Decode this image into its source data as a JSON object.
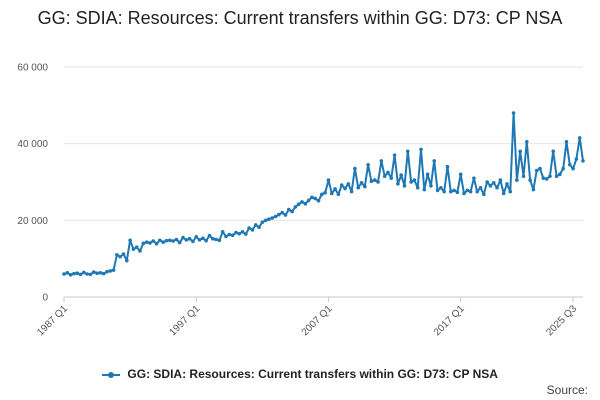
{
  "chart_data": {
    "type": "line",
    "title": "GG: SDIA: Resources: Current transfers within GG: D73: CP NSA",
    "xlabel": "",
    "ylabel": "",
    "ylim": [
      0,
      60000
    ],
    "yticks": [
      0,
      20000,
      40000,
      60000
    ],
    "ytick_labels": [
      "0",
      "20 000",
      "40 000",
      "60 000"
    ],
    "xlim": [
      "1987 Q1",
      "2025 Q3"
    ],
    "xticks": [
      "1987 Q1",
      "1997 Q1",
      "2007 Q1",
      "2017 Q1",
      "2025 Q3"
    ],
    "grid": true,
    "legend": "bottom",
    "color": "#1f78b4",
    "series": [
      {
        "name": "GG: SDIA: Resources: Current transfers within GG: D73: CP NSA",
        "values": [
          6000,
          6300,
          5800,
          6100,
          6200,
          5900,
          6400,
          6000,
          5900,
          6500,
          6200,
          6300,
          6100,
          6600,
          6800,
          7000,
          11000,
          10500,
          11200,
          9500,
          14800,
          12500,
          13000,
          12000,
          14000,
          14300,
          14100,
          14600,
          13900,
          14800,
          14300,
          14700,
          14800,
          14600,
          15000,
          14200,
          15500,
          14900,
          15200,
          14500,
          15700,
          14900,
          15300,
          14700,
          16000,
          15200,
          15000,
          14800,
          17000,
          15800,
          16300,
          16100,
          16800,
          16500,
          17000,
          16400,
          18000,
          17500,
          18800,
          18200,
          19500,
          20000,
          20300,
          20600,
          21000,
          21500,
          22000,
          21400,
          22800,
          22300,
          23500,
          24200,
          24800,
          24300,
          25200,
          26000,
          25700,
          25100,
          26800,
          27200,
          30500,
          27000,
          28200,
          26800,
          29200,
          28300,
          29500,
          27500,
          33500,
          28500,
          29800,
          28800,
          34500,
          30200,
          30500,
          30000,
          35500,
          31500,
          32500,
          31000,
          37000,
          29500,
          31800,
          29000,
          38000,
          30000,
          30500,
          28500,
          38500,
          28000,
          32000,
          29000,
          35500,
          27800,
          28500,
          27500,
          34000,
          27500,
          27800,
          27300,
          32000,
          27000,
          27800,
          27500,
          31000,
          27500,
          28500,
          26800,
          30000,
          29000,
          29800,
          28500,
          30500,
          27000,
          29500,
          27500,
          48000,
          30500,
          38000,
          31500,
          40500,
          30500,
          28000,
          33000,
          33500,
          31000,
          30800,
          31500,
          38000,
          31500,
          32000,
          33500,
          40500,
          34500,
          33500,
          36000,
          41500,
          35500
        ]
      }
    ]
  },
  "legend": {
    "label": "GG: SDIA: Resources: Current transfers within GG: D73: CP NSA"
  },
  "footer": {
    "source_label": "Source:"
  }
}
